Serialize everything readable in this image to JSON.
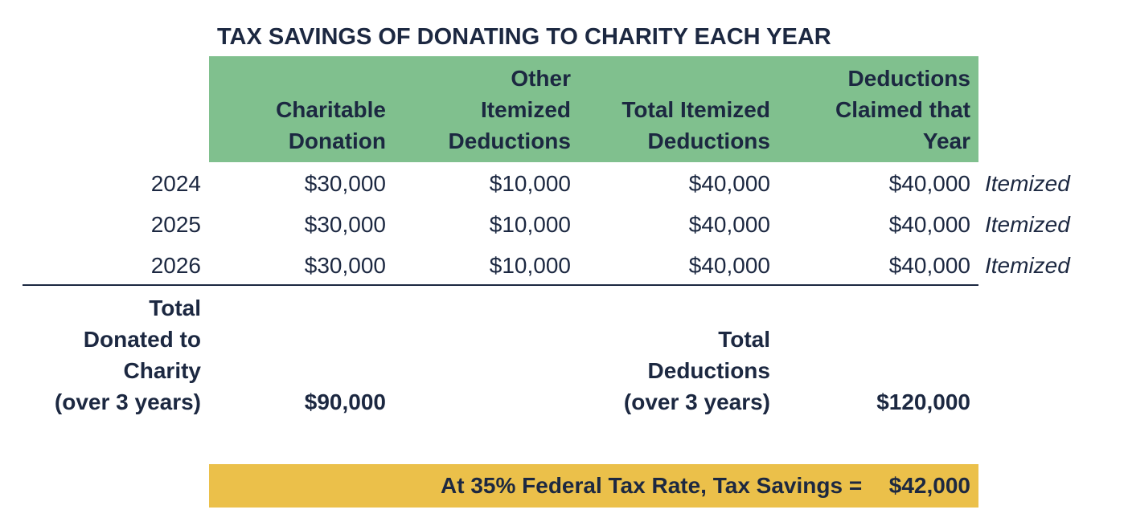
{
  "title": "TAX SAVINGS OF DONATING TO CHARITY EACH YEAR",
  "table": {
    "headers": [
      [
        "Charitable",
        "Donation"
      ],
      [
        "Other",
        "Itemized",
        "Deductions"
      ],
      [
        "Total Itemized",
        "Deductions"
      ],
      [
        "Deductions",
        "Claimed that",
        "Year"
      ]
    ],
    "rows": [
      [
        "2024",
        "$30,000",
        "$10,000",
        "$40,000",
        "$40,000",
        "Itemized"
      ],
      [
        "2025",
        "$30,000",
        "$10,000",
        "$40,000",
        "$40,000",
        "Itemized"
      ],
      [
        "2026",
        "$30,000",
        "$10,000",
        "$40,000",
        "$40,000",
        "Itemized"
      ]
    ]
  },
  "totals": {
    "donated_label": [
      "Total",
      "Donated to",
      "Charity",
      "(over 3 years)"
    ],
    "donated": "$90,000",
    "deductions_label": [
      "Total",
      "Deductions",
      "(over 3 years)"
    ],
    "deductions": "$120,000"
  },
  "savings": {
    "label": "At 35% Federal Tax Rate, Tax Savings =",
    "value": "$42,000"
  }
}
